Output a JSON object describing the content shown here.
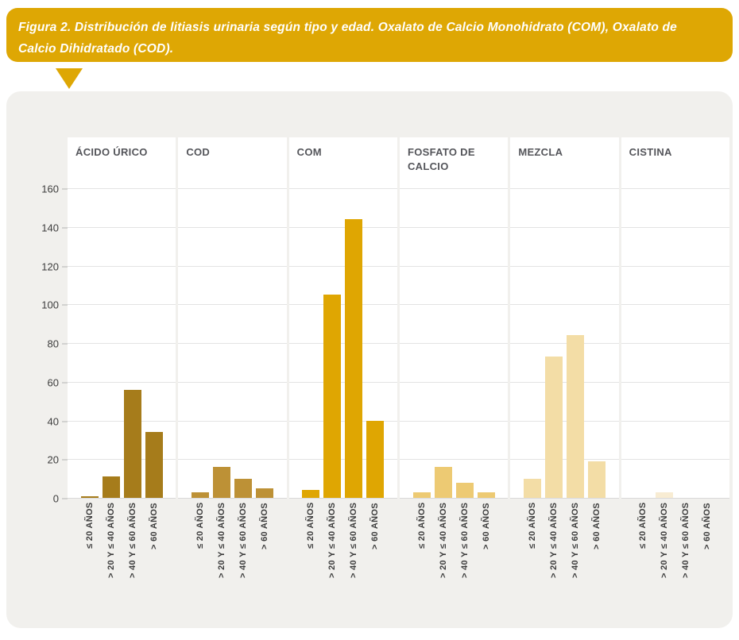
{
  "figure_callout": {
    "text": "Figura 2. Distribución de litiasis urinaria según tipo y edad. Oxalato de Calcio Monohidrato (COM), Oxalato de Calcio Dihidratado (COD).",
    "bg_color": "#dea704",
    "text_color": "#ffffff"
  },
  "chart_data": {
    "type": "bar",
    "title": "Distribución de litiasis urinaria según tipo y edad",
    "categories": [
      "≤ 20 AÑOS",
      "> 20 Y ≤ 40 AÑOS",
      "> 40 Y ≤ 60 AÑOS",
      "> 60 AÑOS"
    ],
    "groups": [
      {
        "label": "ÁCIDO ÚRICO",
        "color": "#a67c1b",
        "values": [
          1,
          11,
          56,
          34
        ]
      },
      {
        "label": "COD",
        "color": "#bd9136",
        "values": [
          3,
          16,
          10,
          5
        ]
      },
      {
        "label": "COM",
        "color": "#dfa602",
        "values": [
          4,
          105,
          144,
          40
        ]
      },
      {
        "label": "FOSFATO DE CALCIO",
        "color": "#edca73",
        "values": [
          3,
          16,
          8,
          3
        ]
      },
      {
        "label": "MEZCLA",
        "color": "#f3dda6",
        "values": [
          10,
          73,
          84,
          19
        ]
      },
      {
        "label": "CISTINA",
        "color": "#f8ecd3",
        "values": [
          0,
          3,
          0,
          0
        ]
      }
    ],
    "y_ticks": [
      0,
      20,
      40,
      60,
      80,
      100,
      120,
      140,
      160
    ],
    "ylim": [
      0,
      187
    ],
    "grid": true,
    "legend": "none"
  },
  "styles": {
    "card_bg": "#f1f0ed",
    "panel_bg": "#ffffff",
    "grid_color": "#e3e3e3",
    "axis_text_color": "#3d3d3d",
    "header_text_color": "#54555a"
  }
}
